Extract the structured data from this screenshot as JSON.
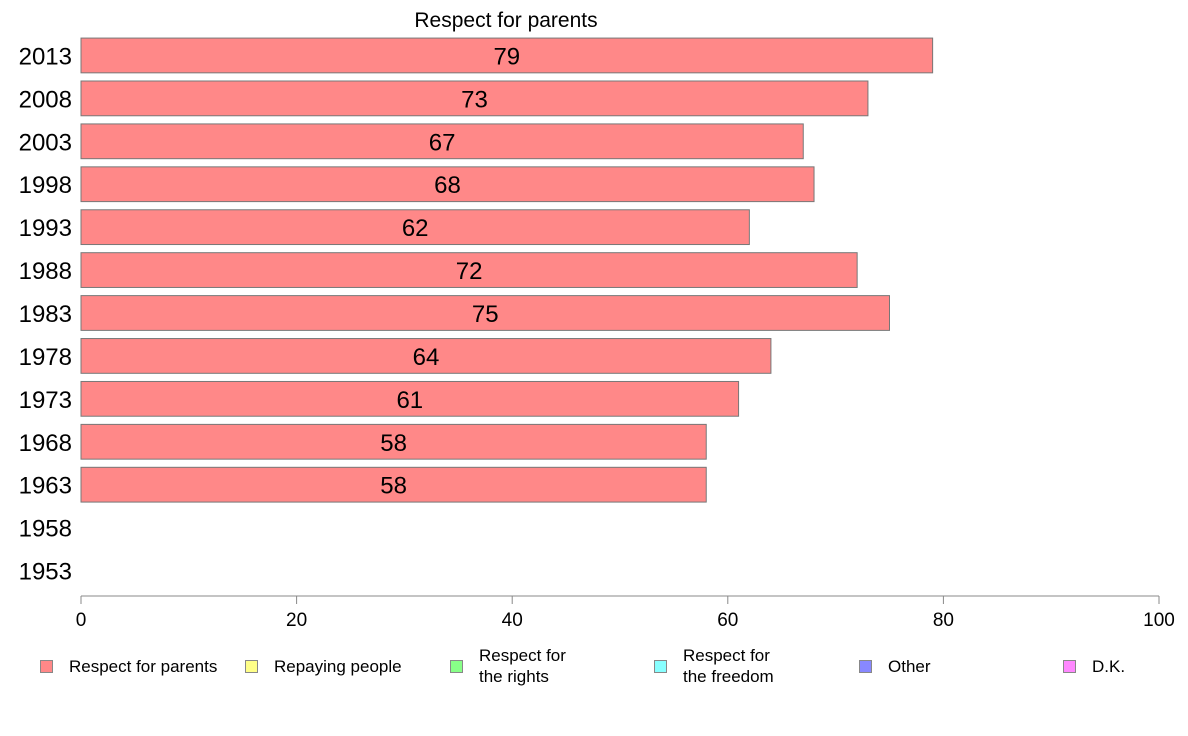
{
  "chart_data": {
    "type": "bar",
    "orientation": "horizontal",
    "title": "Respect for parents",
    "categories": [
      "2013",
      "2008",
      "2003",
      "1998",
      "1993",
      "1988",
      "1983",
      "1978",
      "1973",
      "1968",
      "1963",
      "1958",
      "1953"
    ],
    "series": [
      {
        "name": "Respect for parents",
        "color": "#ff8888",
        "values": [
          79,
          73,
          67,
          68,
          62,
          72,
          75,
          64,
          61,
          58,
          58,
          null,
          null
        ]
      }
    ],
    "xlim": [
      0,
      100
    ],
    "xticks": [
      "0",
      "20",
      "40",
      "60",
      "80",
      "100"
    ],
    "xlabel": "",
    "ylabel": "",
    "grid": false,
    "legend_position": "bottom"
  },
  "legend": [
    {
      "label": "Respect for parents",
      "color": "#ff8888"
    },
    {
      "label": "Repaying people",
      "color": "#ffff88"
    },
    {
      "label": "Respect for the rights",
      "color": "#88ff88"
    },
    {
      "label": "Respect for the freedom",
      "color": "#88ffff"
    },
    {
      "label": "Other",
      "color": "#8888ff"
    },
    {
      "label": "D.K.",
      "color": "#ff88ff"
    }
  ]
}
